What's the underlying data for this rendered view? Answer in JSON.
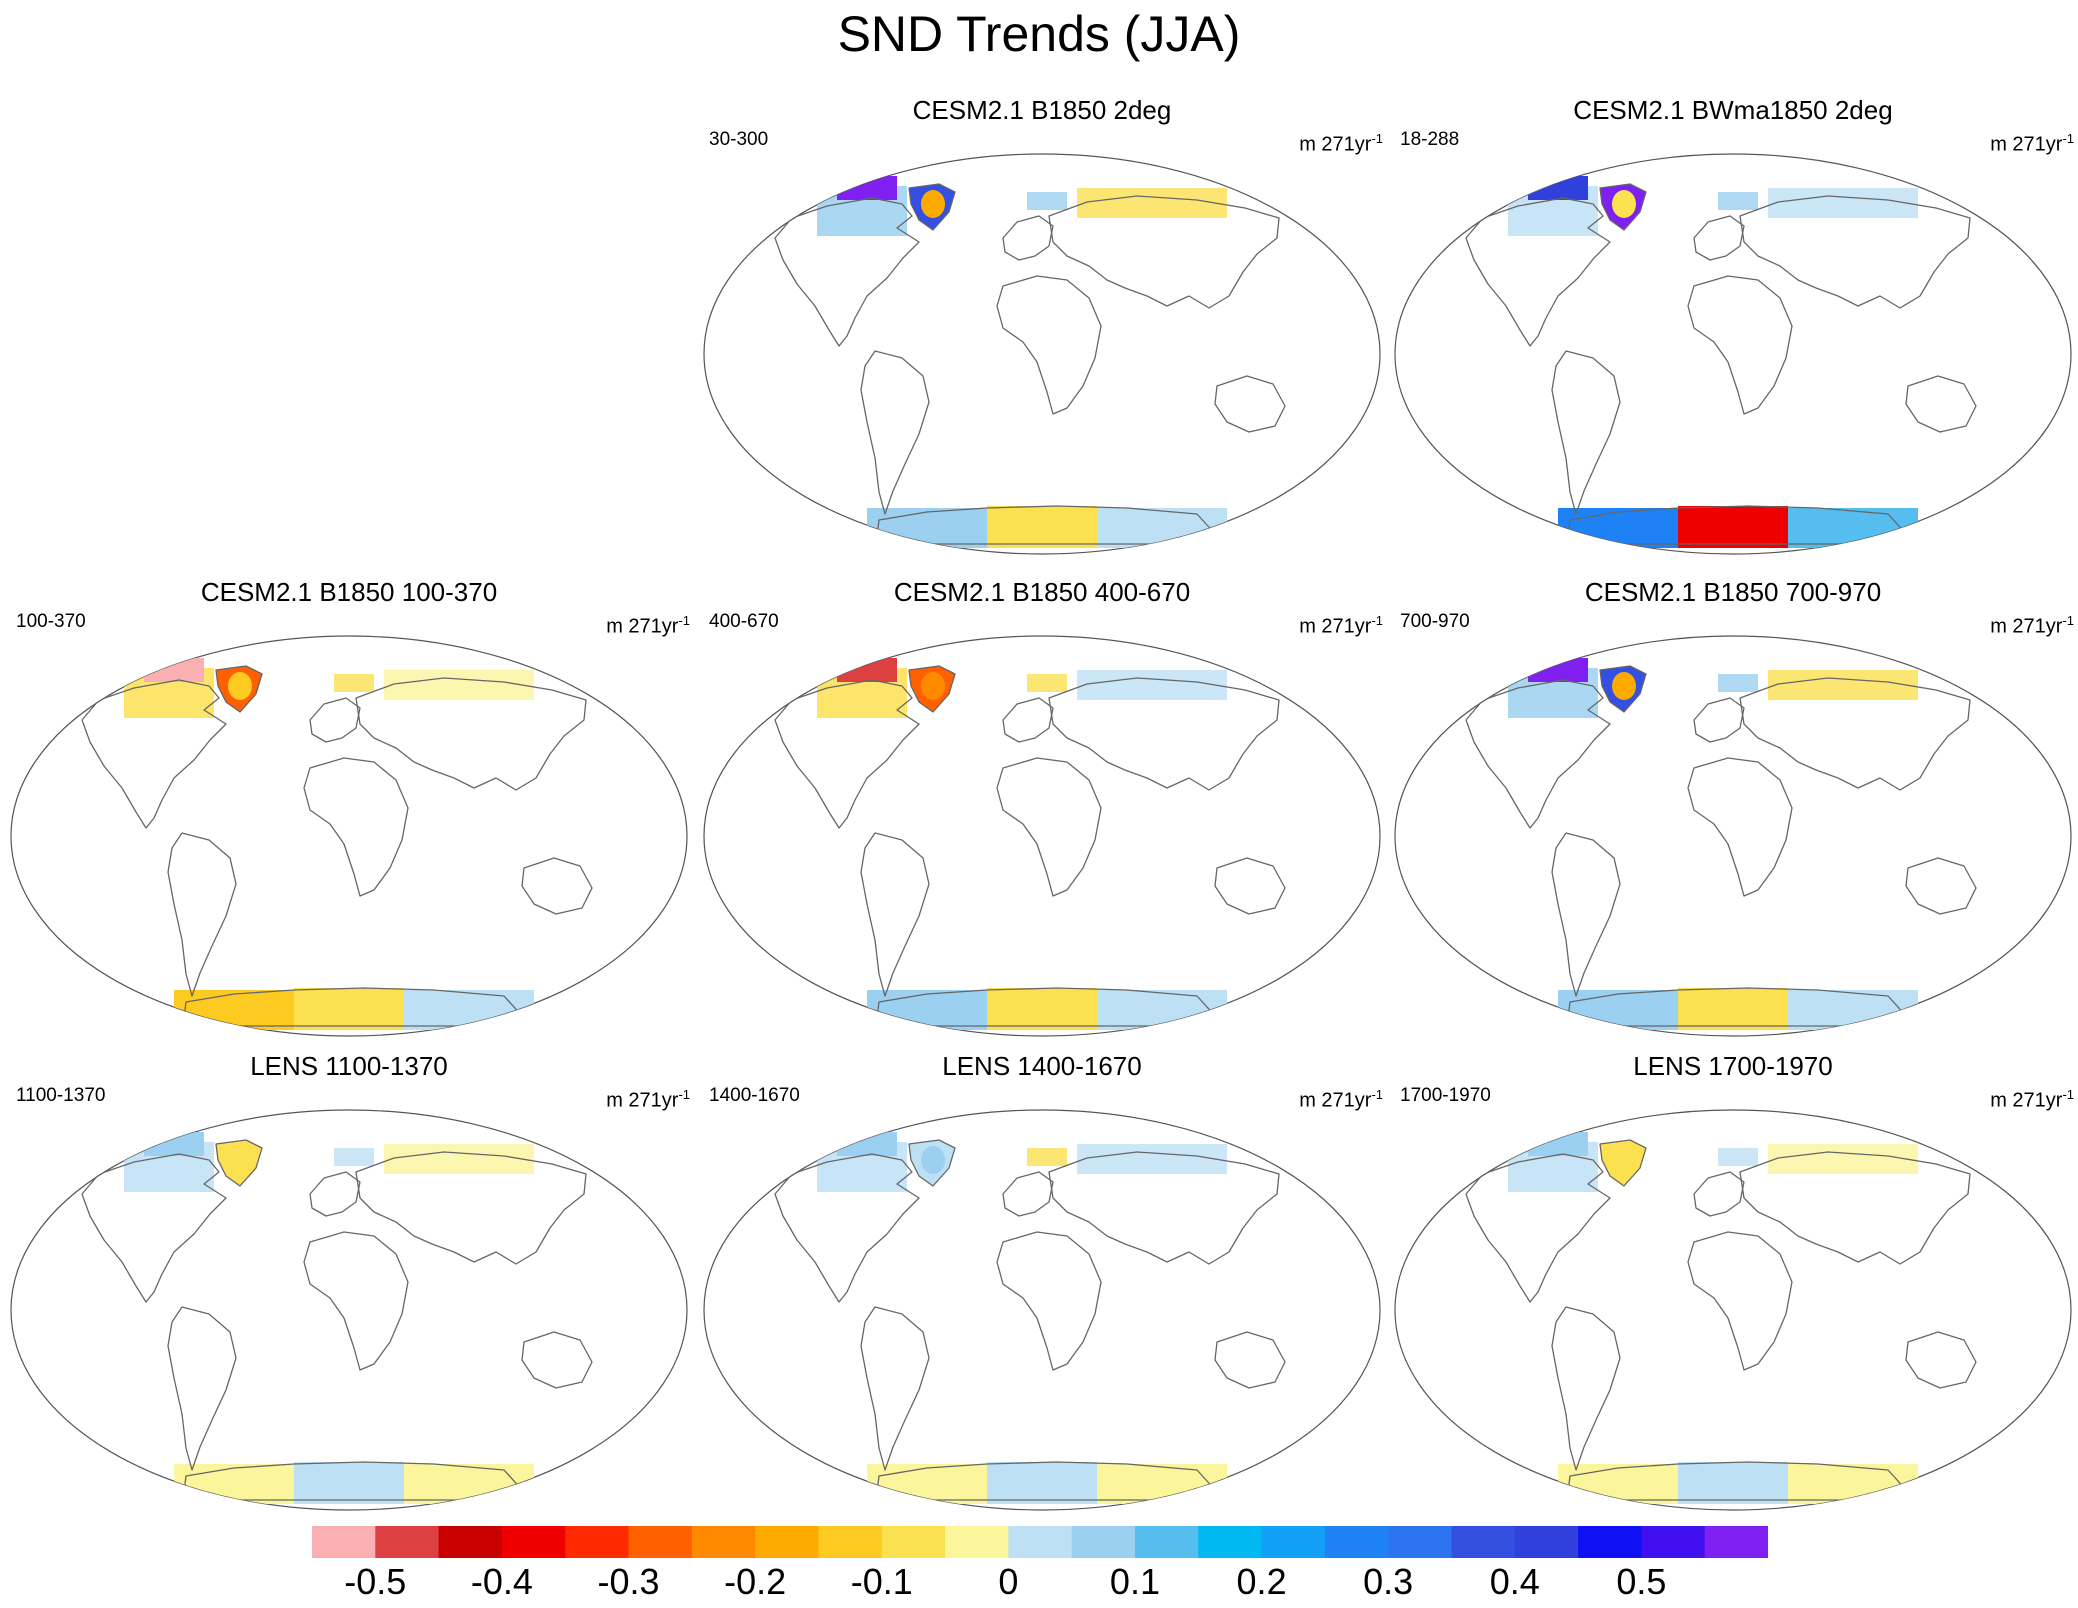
{
  "title": "SND Trends (JJA)",
  "panels": [
    {
      "title": "CESM2.1 B1850 2deg",
      "left_label": "30-300",
      "units": "m 271yr",
      "units_exp": "-1",
      "style": "purple"
    },
    {
      "title": "CESM2.1 BWma1850 2deg",
      "left_label": "18-288",
      "units": "m 271yr",
      "units_exp": "-1",
      "style": "deep"
    },
    {
      "title": "CESM2.1 B1850 100-370",
      "left_label": "100-370",
      "units": "m 271yr",
      "units_exp": "-1",
      "style": "orange"
    },
    {
      "title": "CESM2.1 B1850 400-670",
      "left_label": "400-670",
      "units": "m 271yr",
      "units_exp": "-1",
      "style": "red"
    },
    {
      "title": "CESM2.1 B1850 700-970",
      "left_label": "700-970",
      "units": "m 271yr",
      "units_exp": "-1",
      "style": "purple"
    },
    {
      "title": "LENS 1100-1370",
      "left_label": "1100-1370",
      "units": "m 271yr",
      "units_exp": "-1",
      "style": "light"
    },
    {
      "title": "LENS 1400-1670",
      "left_label": "1400-1670",
      "units": "m 271yr",
      "units_exp": "-1",
      "style": "lightblue"
    },
    {
      "title": "LENS 1700-1970",
      "left_label": "1700-1970",
      "units": "m 271yr",
      "units_exp": "-1",
      "style": "light"
    }
  ],
  "colorbar": {
    "colors": [
      "#fab0b3",
      "#dc4040",
      "#c80000",
      "#ee0000",
      "#ff2a00",
      "#ff6000",
      "#ff8a00",
      "#ffaa00",
      "#fdca22",
      "#fbe050",
      "#fbf59c",
      "#bde0f5",
      "#9bd0f0",
      "#55beef",
      "#00b9f2",
      "#12a0f7",
      "#1e82f5",
      "#2c74f0",
      "#3350e0",
      "#3040dc",
      "#1010f5",
      "#4010f0",
      "#7f1ff0"
    ],
    "labels": [
      "-0.5",
      "-0.4",
      "-0.3",
      "-0.2",
      "-0.1",
      "0",
      "0.1",
      "0.2",
      "0.3",
      "0.4",
      "0.5"
    ]
  }
}
